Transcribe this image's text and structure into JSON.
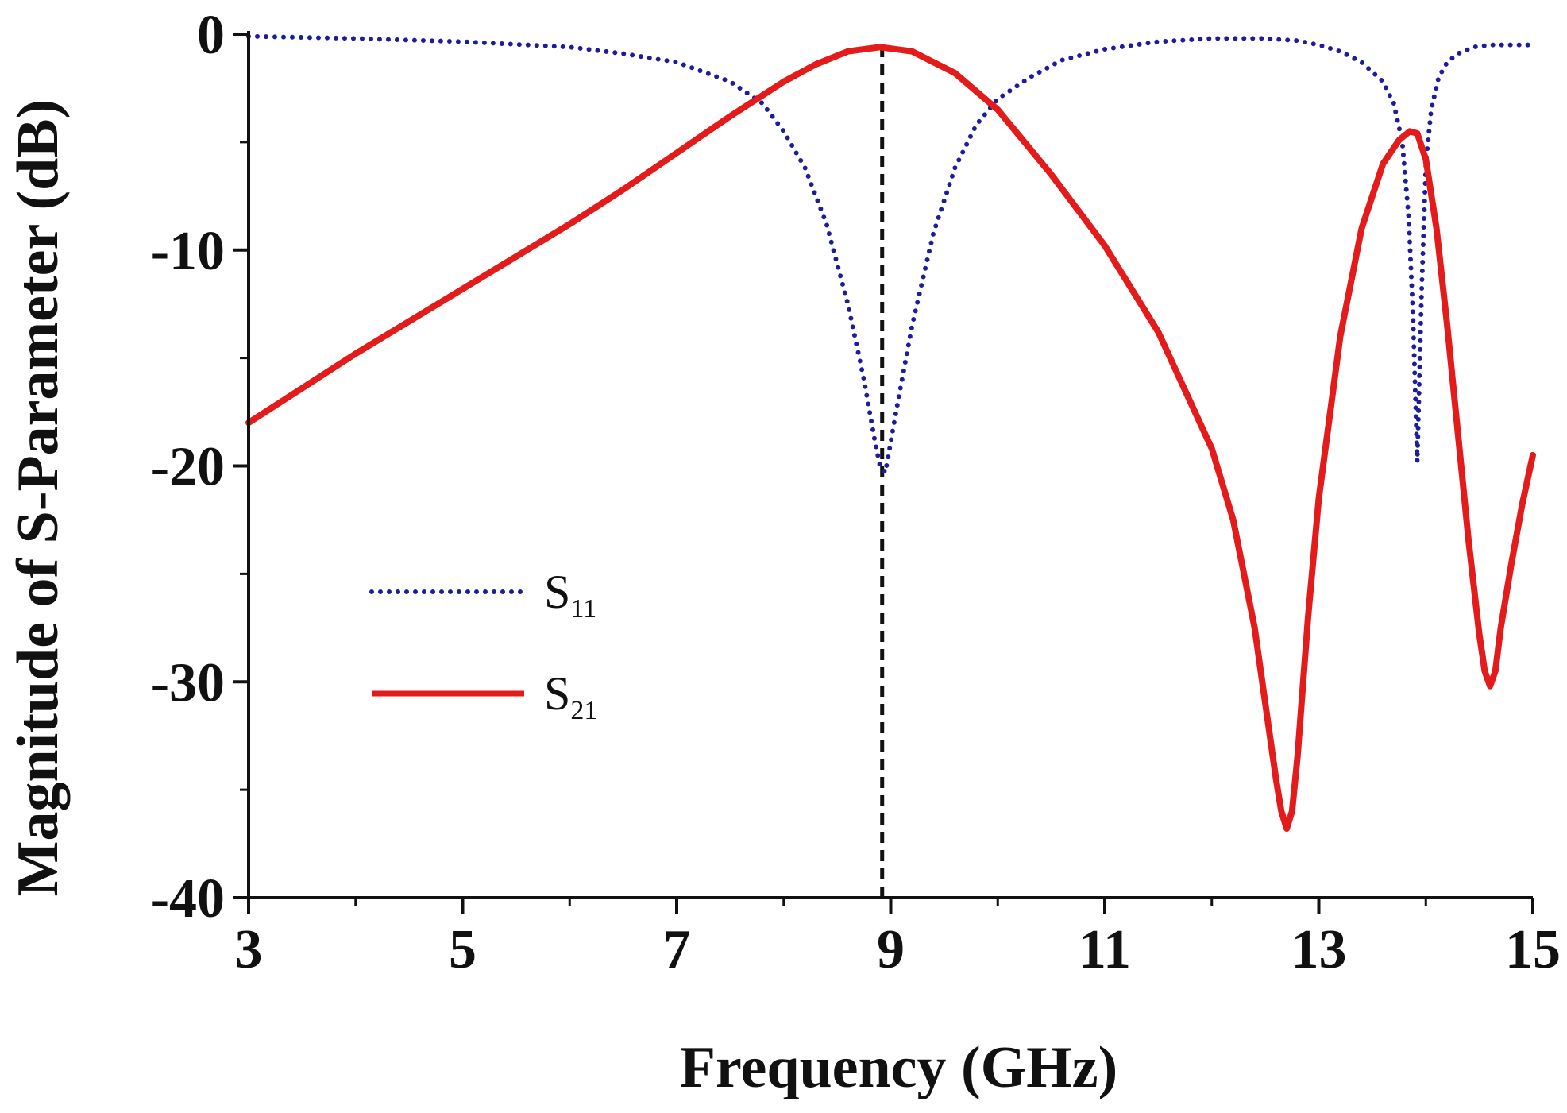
{
  "chart_data": {
    "type": "line",
    "title": "",
    "xlabel": "Frequency (GHz)",
    "ylabel": "Magnitude of S-Parameter (dB)",
    "xlim": [
      3,
      15
    ],
    "ylim": [
      -40,
      0
    ],
    "xticks": [
      3,
      5,
      7,
      9,
      11,
      13,
      15
    ],
    "xtick_labels": [
      "3",
      "5",
      "7",
      "9",
      "11",
      "13",
      "15"
    ],
    "xminor": [
      4,
      6,
      8,
      10,
      12,
      14
    ],
    "yticks": [
      0,
      -10,
      -20,
      -30,
      -40
    ],
    "ytick_labels": [
      "0",
      "-10",
      "-20",
      "-30",
      "-40"
    ],
    "yminor": [
      -5,
      -15,
      -25,
      -35
    ],
    "grid": false,
    "legend_position": "center-left",
    "reference_line": {
      "x": 8.92,
      "y_from": -40,
      "y_to": -0.6,
      "style": "dashed",
      "color": "#111111"
    },
    "series": [
      {
        "name": "S",
        "subscript": "11",
        "style": "dotted",
        "color": "#1c1c9c",
        "x": [
          3.0,
          4.0,
          5.0,
          6.0,
          6.5,
          7.0,
          7.5,
          7.8,
          8.0,
          8.2,
          8.4,
          8.6,
          8.75,
          8.85,
          8.9,
          8.95,
          9.05,
          9.2,
          9.4,
          9.6,
          9.8,
          10.0,
          10.3,
          10.6,
          11.0,
          11.5,
          12.0,
          12.5,
          12.8,
          13.0,
          13.2,
          13.4,
          13.6,
          13.7,
          13.78,
          13.84,
          13.88,
          13.92,
          13.96,
          14.0,
          14.05,
          14.12,
          14.2,
          14.3,
          14.45,
          14.6,
          15.0
        ],
        "values": [
          -0.1,
          -0.2,
          -0.35,
          -0.6,
          -0.9,
          -1.3,
          -2.2,
          -3.2,
          -4.5,
          -6.2,
          -8.8,
          -12.5,
          -16.0,
          -18.8,
          -20.0,
          -20.3,
          -17.5,
          -13.5,
          -9.2,
          -6.2,
          -4.2,
          -3.0,
          -2.0,
          -1.2,
          -0.7,
          -0.35,
          -0.2,
          -0.2,
          -0.3,
          -0.5,
          -0.8,
          -1.3,
          -2.2,
          -3.2,
          -5.0,
          -8.5,
          -13.0,
          -19.8,
          -12.0,
          -6.0,
          -3.5,
          -2.0,
          -1.3,
          -0.9,
          -0.6,
          -0.5,
          -0.5
        ]
      },
      {
        "name": "S",
        "subscript": "21",
        "style": "solid",
        "color": "#e41b1b",
        "x": [
          3.0,
          4.0,
          5.0,
          6.0,
          6.5,
          7.0,
          7.5,
          8.0,
          8.3,
          8.6,
          8.9,
          9.2,
          9.6,
          10.0,
          10.5,
          11.0,
          11.5,
          12.0,
          12.2,
          12.4,
          12.5,
          12.6,
          12.65,
          12.7,
          12.75,
          12.8,
          12.9,
          13.0,
          13.2,
          13.4,
          13.6,
          13.75,
          13.85,
          13.92,
          14.0,
          14.1,
          14.2,
          14.3,
          14.4,
          14.5,
          14.55,
          14.6,
          14.65,
          14.7,
          14.8,
          14.9,
          15.0
        ],
        "values": [
          -18.0,
          -14.8,
          -11.8,
          -8.8,
          -7.2,
          -5.5,
          -3.8,
          -2.2,
          -1.4,
          -0.8,
          -0.6,
          -0.8,
          -1.8,
          -3.5,
          -6.5,
          -9.8,
          -13.8,
          -19.2,
          -22.5,
          -27.5,
          -31.0,
          -34.5,
          -36.0,
          -36.8,
          -36.0,
          -33.5,
          -27.0,
          -21.5,
          -14.0,
          -9.0,
          -6.0,
          -4.9,
          -4.5,
          -4.6,
          -5.8,
          -9.0,
          -13.5,
          -18.5,
          -23.5,
          -27.8,
          -29.5,
          -30.2,
          -29.5,
          -27.5,
          -24.5,
          -21.8,
          -19.5
        ]
      }
    ]
  }
}
